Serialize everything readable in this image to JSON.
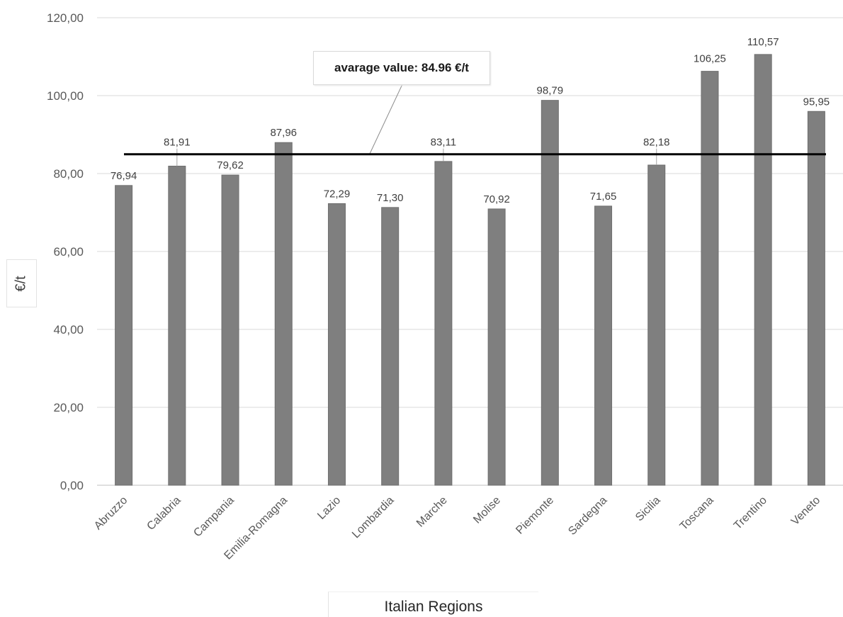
{
  "chart_data": {
    "type": "bar",
    "categories": [
      "Abruzzo",
      "Calabria",
      "Campania",
      "Emilia-Romagna",
      "Lazio",
      "Lombardia",
      "Marche",
      "Molise",
      "Piemonte",
      "Sardegna",
      "Sicilia",
      "Toscana",
      "Trentino",
      "Veneto"
    ],
    "values": [
      76.94,
      81.91,
      79.62,
      87.96,
      72.29,
      71.3,
      83.11,
      70.92,
      98.79,
      71.65,
      82.18,
      106.25,
      110.57,
      95.95
    ],
    "value_labels": [
      "76,94",
      "81,91",
      "79,62",
      "87,96",
      "72,29",
      "71,30",
      "83,11",
      "70,92",
      "98,79",
      "71,65",
      "82,18",
      "106,25",
      "110,57",
      "95,95"
    ],
    "ylim": [
      0,
      120
    ],
    "yticks": [
      "0,00",
      "20,00",
      "40,00",
      "60,00",
      "80,00",
      "100,00",
      "120,00"
    ],
    "ylabel": "€/t",
    "xlabel": "Italian Regions",
    "average": 84.96,
    "average_label": "avarage value: 84.96 €/t",
    "bar_color": "#7f7f7f",
    "grid": true
  }
}
